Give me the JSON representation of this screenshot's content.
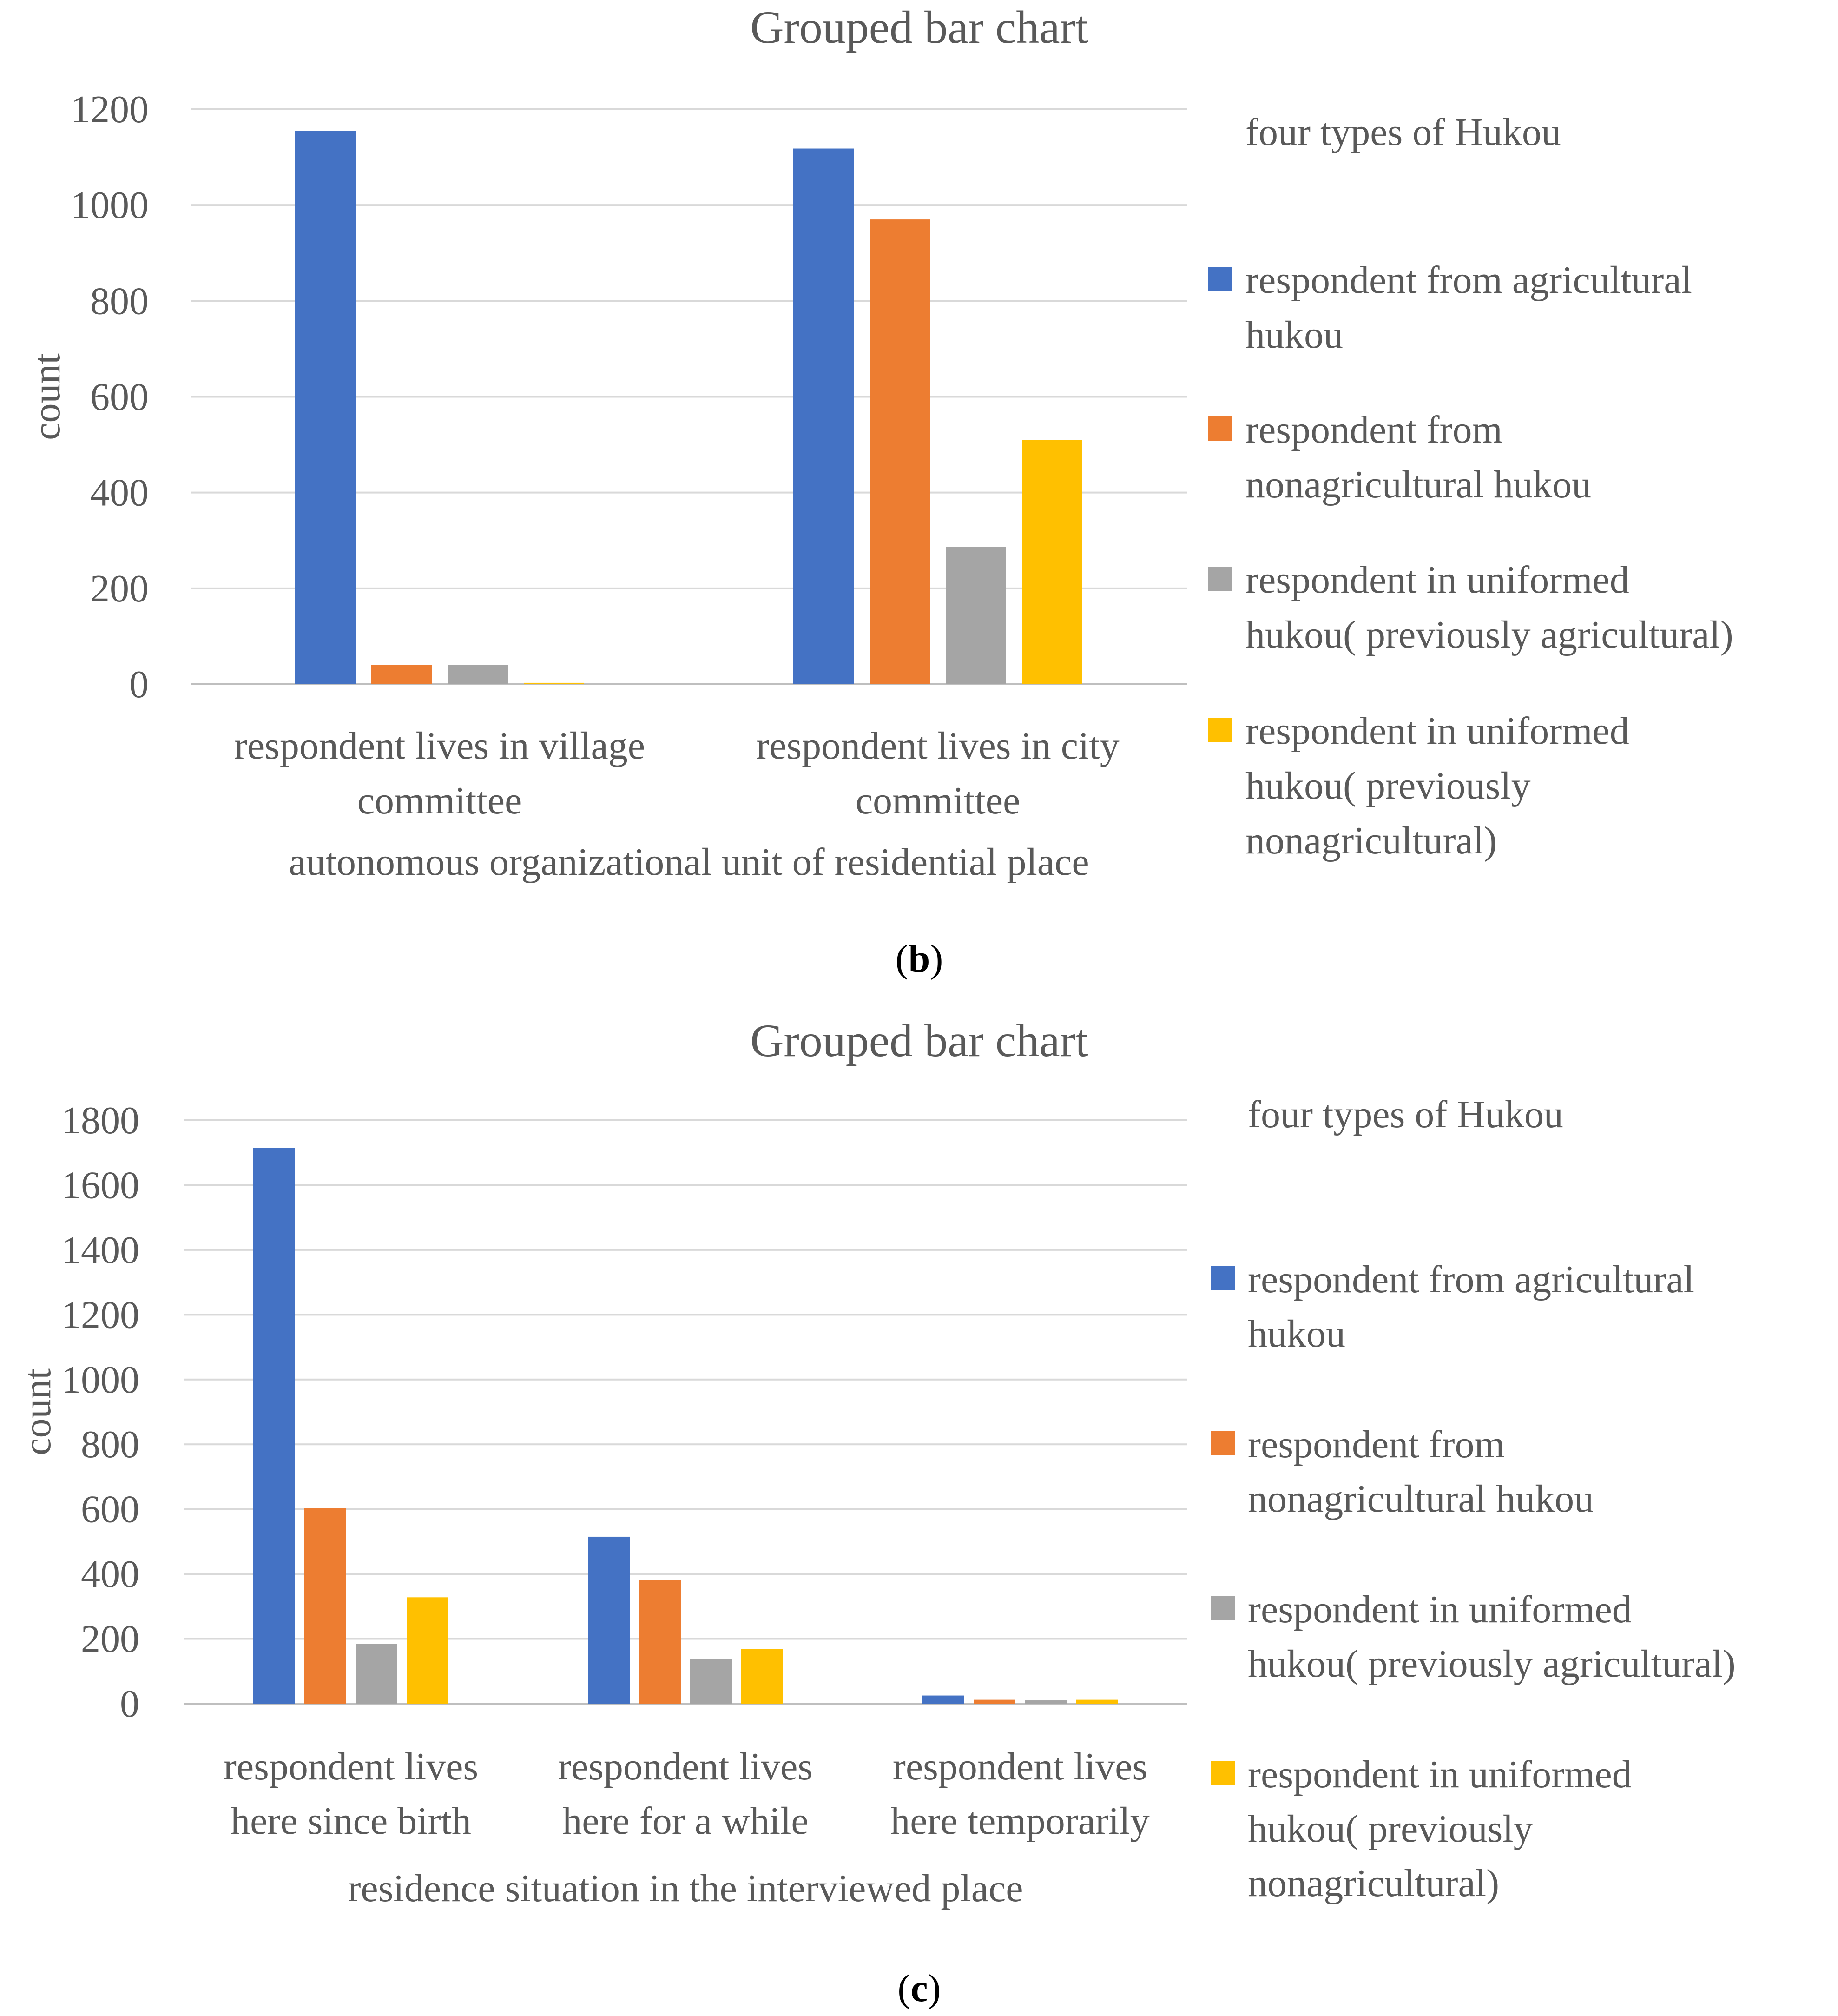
{
  "chart_data": [
    {
      "type": "bar",
      "title": "Grouped bar chart",
      "xlabel": "autonomous organizational unit of residential place",
      "ylabel": "count",
      "ylim": [
        0,
        1200
      ],
      "yticks": [
        0,
        200,
        400,
        600,
        800,
        1000,
        1200
      ],
      "categories": [
        [
          "respondent lives in village",
          "committee"
        ],
        [
          "respondent lives in city",
          "committee"
        ]
      ],
      "legend_title": "four types of Hukou",
      "series": [
        {
          "name": [
            "respondent from agricultural",
            "hukou"
          ],
          "color": "#4472C4",
          "values": [
            1155,
            1118
          ]
        },
        {
          "name": [
            "respondent from",
            "nonagricultural hukou"
          ],
          "color": "#ED7D31",
          "values": [
            40,
            970
          ]
        },
        {
          "name": [
            "respondent in uniformed",
            "hukou( previously agricultural)"
          ],
          "color": "#A5A5A5",
          "values": [
            40,
            287
          ]
        },
        {
          "name": [
            "respondent in uniformed",
            "hukou( previously",
            "nonagricultural)"
          ],
          "color": "#FFC000",
          "values": [
            3,
            510
          ]
        }
      ],
      "caption": {
        "open": "(",
        "letter": "b",
        "close": ")"
      }
    },
    {
      "type": "bar",
      "title": "Grouped bar chart",
      "xlabel": "residence situation in the interviewed place",
      "ylabel": "count",
      "ylim": [
        0,
        1800
      ],
      "yticks": [
        0,
        200,
        400,
        600,
        800,
        1000,
        1200,
        1400,
        1600,
        1800
      ],
      "categories": [
        [
          "respondent lives",
          "here since birth"
        ],
        [
          "respondent lives",
          "here for a while"
        ],
        [
          "respondent lives",
          "here temporarily"
        ]
      ],
      "legend_title": "four types of Hukou",
      "series": [
        {
          "name": [
            "respondent from agricultural",
            "hukou"
          ],
          "color": "#4472C4",
          "values": [
            1715,
            515,
            25
          ]
        },
        {
          "name": [
            "respondent from",
            "nonagricultural hukou"
          ],
          "color": "#ED7D31",
          "values": [
            603,
            382,
            12
          ]
        },
        {
          "name": [
            "respondent in uniformed",
            "hukou( previously agricultural)"
          ],
          "color": "#A5A5A5",
          "values": [
            185,
            137,
            10
          ]
        },
        {
          "name": [
            "respondent in uniformed",
            "hukou( previously",
            "nonagricultural)"
          ],
          "color": "#FFC000",
          "values": [
            328,
            168,
            12
          ]
        }
      ],
      "caption": {
        "open": "(",
        "letter": "c",
        "close": ")"
      }
    }
  ]
}
